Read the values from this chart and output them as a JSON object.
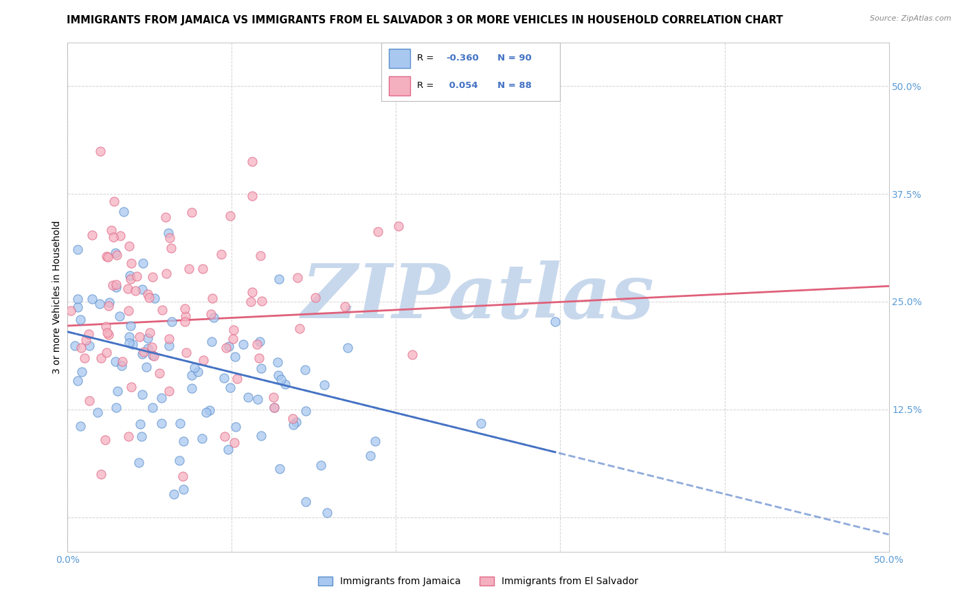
{
  "title": "IMMIGRANTS FROM JAMAICA VS IMMIGRANTS FROM EL SALVADOR 3 OR MORE VEHICLES IN HOUSEHOLD CORRELATION CHART",
  "source": "Source: ZipAtlas.com",
  "ylabel": "3 or more Vehicles in Household",
  "jamaica_R": -0.36,
  "jamaica_N": 90,
  "elsalvador_R": 0.054,
  "elsalvador_N": 88,
  "jamaica_fill": "#A8C8F0",
  "jamaica_edge": "#5B8FCC",
  "elsalvador_fill": "#F5B0C0",
  "elsalvador_edge": "#E06888",
  "jamaica_line": "#4472C4",
  "elsalvador_line": "#E0607A",
  "background": "#FFFFFF",
  "grid_color": "#CCCCCC",
  "watermark_text": "ZIPatlas",
  "watermark_color": "#C8D8EC",
  "tick_color": "#5B9BD5",
  "r_color": "#4472C4",
  "title_fontsize": 10.5,
  "ylabel_fontsize": 10,
  "tick_fontsize": 10,
  "legend_fontsize": 9.5,
  "xlim": [
    0.0,
    0.5
  ],
  "ylim": [
    -0.04,
    0.55
  ],
  "ytick_values": [
    0.0,
    0.125,
    0.25,
    0.375,
    0.5
  ],
  "xtick_values": [
    0.0,
    0.1,
    0.2,
    0.3,
    0.4,
    0.5
  ],
  "jamaica_line_y0": 0.215,
  "jamaica_line_y1": -0.02,
  "elsalvador_line_y0": 0.222,
  "elsalvador_line_y1": 0.268
}
